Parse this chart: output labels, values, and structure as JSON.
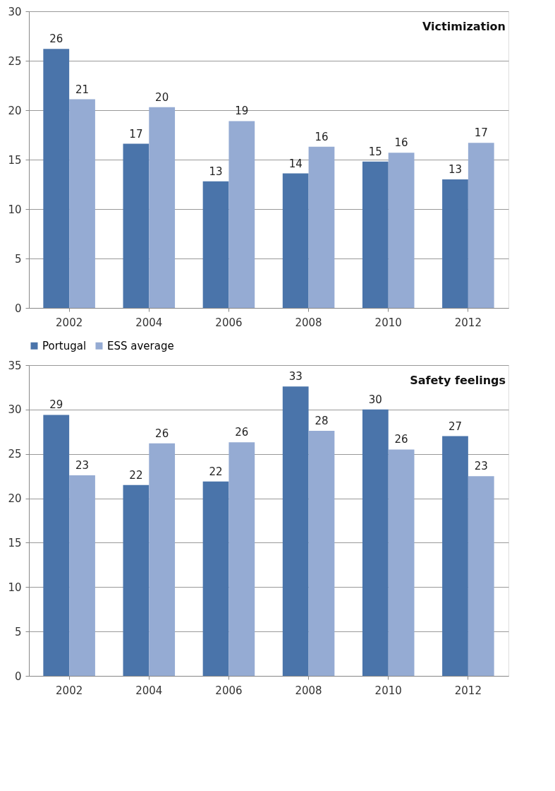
{
  "chart_data": [
    {
      "type": "bar",
      "title": "Victimization",
      "categories": [
        "2002",
        "2004",
        "2006",
        "2008",
        "2010",
        "2012"
      ],
      "series": [
        {
          "name": "Portugal",
          "color": "#4a74aa",
          "values": [
            26.2,
            16.6,
            12.8,
            13.6,
            14.8,
            13.0
          ],
          "value_labels": [
            "26",
            "17",
            "13",
            "14",
            "15",
            "13"
          ]
        },
        {
          "name": "ESS average",
          "color": "#95abd3",
          "values": [
            21.1,
            20.3,
            18.9,
            16.3,
            15.7,
            16.7
          ],
          "value_labels": [
            "21",
            "20",
            "19",
            "16",
            "16",
            "17"
          ]
        }
      ],
      "ylim": [
        0,
        30
      ],
      "yticks": [
        0,
        5,
        10,
        15,
        20,
        25,
        30
      ],
      "grid": "y",
      "legend": "bottom"
    },
    {
      "type": "bar",
      "title": "Safety feelings",
      "categories": [
        "2002",
        "2004",
        "2006",
        "2008",
        "2010",
        "2012"
      ],
      "series": [
        {
          "color": "#4a74aa",
          "values": [
            29.4,
            21.5,
            21.9,
            32.6,
            30.0,
            27.0
          ],
          "value_labels": [
            "29",
            "22",
            "22",
            "33",
            "30",
            "27"
          ]
        },
        {
          "color": "#95abd3",
          "values": [
            22.6,
            26.2,
            26.3,
            27.6,
            25.5,
            22.5
          ],
          "value_labels": [
            "23",
            "26",
            "26",
            "28",
            "26",
            "23"
          ]
        }
      ],
      "ylim": [
        0,
        35
      ],
      "yticks": [
        0,
        5,
        10,
        15,
        20,
        25,
        30,
        35
      ],
      "grid": "y",
      "legend": false
    }
  ]
}
